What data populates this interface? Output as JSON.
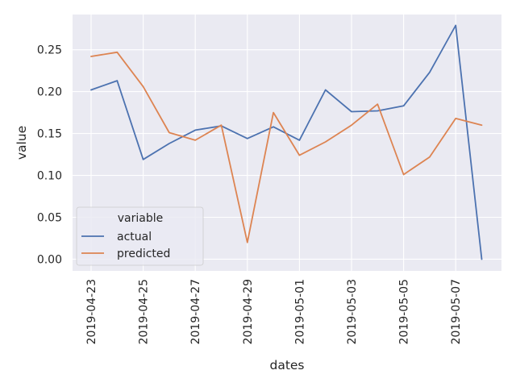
{
  "chart_data": {
    "type": "line",
    "xlabel": "dates",
    "ylabel": "value",
    "x": [
      "2019-04-23",
      "2019-04-24",
      "2019-04-25",
      "2019-04-26",
      "2019-04-27",
      "2019-04-28",
      "2019-04-29",
      "2019-04-30",
      "2019-05-01",
      "2019-05-02",
      "2019-05-03",
      "2019-05-04",
      "2019-05-05",
      "2019-05-06",
      "2019-05-07",
      "2019-05-08"
    ],
    "x_ticks": [
      "2019-04-23",
      "2019-04-25",
      "2019-04-27",
      "2019-04-29",
      "2019-05-01",
      "2019-05-03",
      "2019-05-05",
      "2019-05-07"
    ],
    "y_ticks": [
      "0.00",
      "0.05",
      "0.10",
      "0.15",
      "0.20",
      "0.25"
    ],
    "ylim": [
      -0.014,
      0.292
    ],
    "grid": true,
    "legend": {
      "title": "variable",
      "placement": "lower-left"
    },
    "series": [
      {
        "name": "actual",
        "color": "#4c72b0",
        "values": [
          0.202,
          0.213,
          0.119,
          0.138,
          0.154,
          0.159,
          0.144,
          0.158,
          0.142,
          0.202,
          0.176,
          0.177,
          0.183,
          0.223,
          0.279,
          0.0
        ]
      },
      {
        "name": "predicted",
        "color": "#dd8452",
        "values": [
          0.242,
          0.247,
          0.206,
          0.151,
          0.142,
          0.16,
          0.02,
          0.175,
          0.124,
          0.14,
          0.16,
          0.185,
          0.101,
          0.122,
          0.168,
          0.16
        ]
      }
    ]
  }
}
